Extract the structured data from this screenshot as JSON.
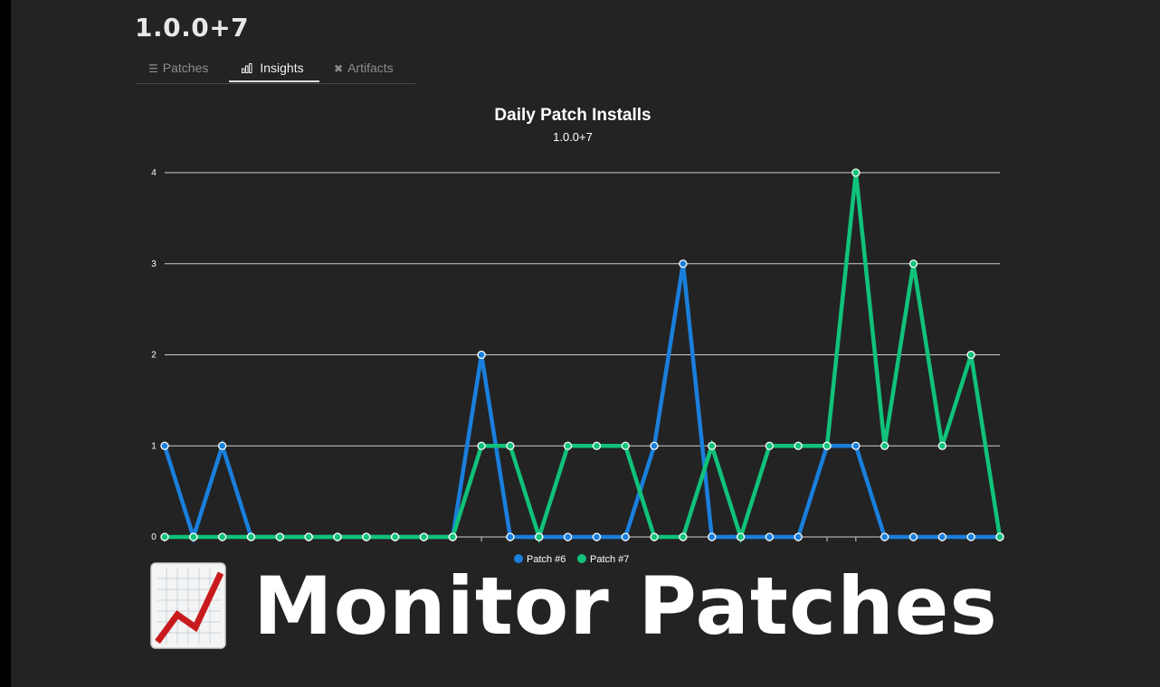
{
  "header": {
    "release_title": "1.0.0+7"
  },
  "tabs": [
    {
      "label": "Patches",
      "icon": "list-icon",
      "active": false
    },
    {
      "label": "Insights",
      "icon": "bar-chart-icon",
      "active": true
    },
    {
      "label": "Artifacts",
      "icon": "tools-icon",
      "active": false
    }
  ],
  "chart_data": {
    "type": "line",
    "title": "Daily Patch Installs",
    "subtitle": "1.0.0+7",
    "ylim": [
      0,
      4
    ],
    "yticks": [
      "0",
      "1",
      "2",
      "3",
      "4"
    ],
    "grid": true,
    "legend": "bottom-center",
    "series": [
      {
        "name": "Patch #6",
        "color": "#1a7fdc",
        "values": [
          1,
          0,
          1,
          0,
          0,
          0,
          0,
          0,
          0,
          0,
          0,
          2,
          0,
          0,
          0,
          0,
          0,
          1,
          3,
          0,
          0,
          0,
          0,
          1,
          1,
          0,
          0,
          0,
          0,
          0
        ]
      },
      {
        "name": "Patch #7",
        "color": "#10c27a",
        "values": [
          0,
          0,
          0,
          0,
          0,
          0,
          0,
          0,
          0,
          0,
          0,
          1,
          1,
          0,
          1,
          1,
          1,
          0,
          0,
          1,
          0,
          1,
          1,
          1,
          4,
          1,
          3,
          1,
          2,
          0
        ]
      }
    ]
  },
  "banner": {
    "text": "Monitor Patches",
    "icon": "chart-increasing-icon"
  },
  "colors": {
    "background": "#232323",
    "grid": "#cfcfcf",
    "text": "#ffffff"
  }
}
